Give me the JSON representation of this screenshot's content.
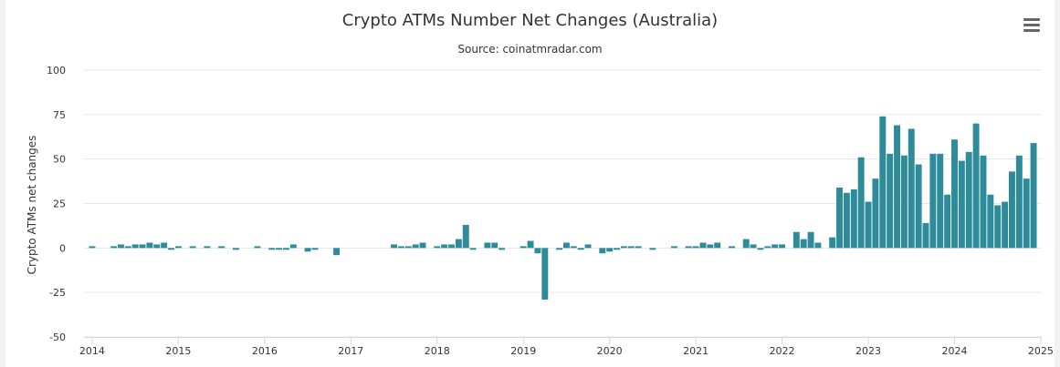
{
  "menu_icon": "hamburger-menu-icon",
  "chart_data": {
    "type": "bar",
    "title": "Crypto ATMs Number Net Changes (Australia)",
    "subtitle": "Source: coinatmradar.com",
    "xlabel": "",
    "ylabel": "Crypto ATMs net changes",
    "ylim": [
      -50,
      100
    ],
    "yticks": [
      -50,
      -25,
      0,
      25,
      50,
      75,
      100
    ],
    "xtick_labels": [
      "2014",
      "2015",
      "2016",
      "2017",
      "2018",
      "2019",
      "2020",
      "2021",
      "2022",
      "2023",
      "2024",
      "2025"
    ],
    "x_start": "2014-01",
    "bar_color": "#2e8b99",
    "grid": true,
    "series": [
      {
        "values": [
          1,
          0,
          0,
          1,
          2,
          1,
          2,
          2,
          3,
          2,
          3,
          -1,
          1,
          0,
          1,
          0,
          1,
          0,
          1,
          0,
          -1,
          0,
          0,
          1,
          0,
          -1,
          -1,
          -1,
          2,
          0,
          -2,
          -1,
          0,
          0,
          -4,
          0,
          0,
          0,
          0,
          0,
          0,
          0,
          2,
          1,
          1,
          2,
          3,
          0,
          1,
          2,
          2,
          5,
          13,
          -1,
          0,
          3,
          3,
          -1,
          0,
          0,
          1,
          4,
          -3,
          -29,
          0,
          -1,
          3,
          1,
          -1,
          2,
          0,
          -3,
          -2,
          -1,
          1,
          1,
          1,
          0,
          -1,
          0,
          0,
          1,
          0,
          1,
          1,
          3,
          2,
          3,
          0,
          1,
          0,
          5,
          2,
          -1,
          1,
          2,
          2,
          0,
          9,
          5,
          9,
          3,
          0,
          6,
          34,
          31,
          33,
          51,
          26,
          39,
          74,
          53,
          69,
          52,
          67,
          47,
          14,
          53,
          53,
          30,
          61,
          49,
          54,
          70,
          52,
          30,
          24,
          26,
          43,
          52,
          39,
          59
        ]
      }
    ]
  }
}
